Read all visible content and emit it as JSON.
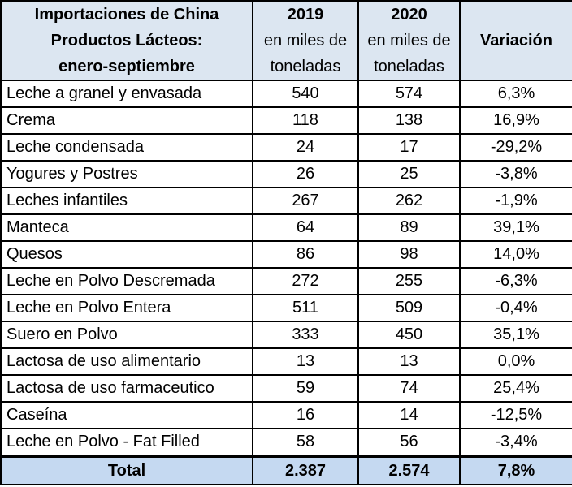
{
  "header": {
    "title_lines": [
      "Importaciones de China",
      "Productos Lácteos:",
      "enero-septiembre"
    ],
    "col_2019": {
      "year": "2019",
      "unit_lines": [
        "en miles de",
        "toneladas"
      ]
    },
    "col_2020": {
      "year": "2020",
      "unit_lines": [
        "en miles de",
        "toneladas"
      ]
    },
    "col_variation": "Variación"
  },
  "rows": [
    {
      "product": "Leche a granel y envasada",
      "y2019": "540",
      "y2020": "574",
      "variation": "6,3%"
    },
    {
      "product": "Crema",
      "y2019": "118",
      "y2020": "138",
      "variation": "16,9%"
    },
    {
      "product": "Leche condensada",
      "y2019": "24",
      "y2020": "17",
      "variation": "-29,2%"
    },
    {
      "product": "Yogures y Postres",
      "y2019": "26",
      "y2020": "25",
      "variation": "-3,8%"
    },
    {
      "product": "Leches infantiles",
      "y2019": "267",
      "y2020": "262",
      "variation": "-1,9%"
    },
    {
      "product": "Manteca",
      "y2019": "64",
      "y2020": "89",
      "variation": "39,1%"
    },
    {
      "product": "Quesos",
      "y2019": "86",
      "y2020": "98",
      "variation": "14,0%"
    },
    {
      "product": "Leche en Polvo Descremada",
      "y2019": "272",
      "y2020": "255",
      "variation": "-6,3%"
    },
    {
      "product": "Leche en Polvo Entera",
      "y2019": "511",
      "y2020": "509",
      "variation": "-0,4%"
    },
    {
      "product": "Suero en Polvo",
      "y2019": "333",
      "y2020": "450",
      "variation": "35,1%"
    },
    {
      "product": "Lactosa de uso alimentario",
      "y2019": "13",
      "y2020": "13",
      "variation": "0,0%"
    },
    {
      "product": "Lactosa de uso farmaceutico",
      "y2019": "59",
      "y2020": "74",
      "variation": "25,4%"
    },
    {
      "product": "Caseína",
      "y2019": "16",
      "y2020": "14",
      "variation": "-12,5%"
    },
    {
      "product": "Leche en Polvo - Fat Filled",
      "y2019": "58",
      "y2020": "56",
      "variation": "-3,4%"
    }
  ],
  "total": {
    "label": "Total",
    "y2019": "2.387",
    "y2020": "2.574",
    "variation": "7,8%"
  },
  "colors": {
    "header_bg": "#dce6f1",
    "total_bg": "#c5d9f1"
  }
}
